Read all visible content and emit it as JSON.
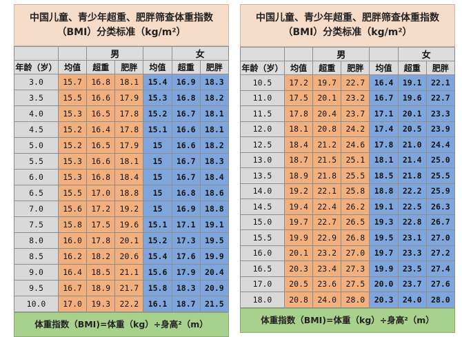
{
  "left": {
    "title_line1": "中国儿童、青少年超重、肥胖筛查体重指数",
    "title_line2": "（BMI）分类标准（kg/m²）",
    "group_boy": "男",
    "group_girl": "女",
    "col_headers": [
      "年龄（岁）",
      "均值",
      "超重",
      "肥胖",
      "均值",
      "超重",
      "肥胖"
    ],
    "rows": [
      [
        "3.0",
        "15.7",
        "16.8",
        "18.1",
        "15.4",
        "16.9",
        "18.3"
      ],
      [
        "3.5",
        "15.5",
        "16.6",
        "17.9",
        "15.3",
        "16.8",
        "18.2"
      ],
      [
        "4.0",
        "15.3",
        "16.5",
        "17.8",
        "15.2",
        "16.7",
        "18.1"
      ],
      [
        "4.5",
        "15.2",
        "16.4",
        "17.8",
        "15.1",
        "16.6",
        "18.1"
      ],
      [
        "5.0",
        "15.2",
        "16.5",
        "17.9",
        "15",
        "16.6",
        "18.2"
      ],
      [
        "5.5",
        "15.3",
        "16.6",
        "18.1",
        "15",
        "16.7",
        "18.3"
      ],
      [
        "6.0",
        "15.3",
        "16.8",
        "18.4",
        "15",
        "16.7",
        "18.4"
      ],
      [
        "6.5",
        "15.5",
        "17.0",
        "18.8",
        "15",
        "16.8",
        "18.6"
      ],
      [
        "7.0",
        "15.6",
        "17.2",
        "19.2",
        "15",
        "16.9",
        "18.8"
      ],
      [
        "7.5",
        "15.8",
        "17.5",
        "19.6",
        "15.1",
        "17.1",
        "19.1"
      ],
      [
        "8.0",
        "16.0",
        "17.8",
        "20.1",
        "15.2",
        "17.3",
        "19.5"
      ],
      [
        "8.5",
        "16.2",
        "18.2",
        "20.6",
        "15.4",
        "17.6",
        "19.9"
      ],
      [
        "9.0",
        "16.4",
        "18.5",
        "21.1",
        "15.6",
        "17.9",
        "20.4"
      ],
      [
        "9.5",
        "16.7",
        "18.9",
        "21.7",
        "15.8",
        "18.3",
        "20.9"
      ],
      [
        "10.0",
        "17.0",
        "19.3",
        "22.2",
        "16.1",
        "18.7",
        "21.5"
      ]
    ],
    "footer": "体重指数（BMI)=体重（kg）÷身高²（m）"
  },
  "right": {
    "title_line1": "中国儿童、青少年超重、肥胖筛查体重指数",
    "title_line2": "（BMI）分类标准（kg/m²）",
    "group_boy": "男",
    "group_girl": "女",
    "col_headers": [
      "年龄（岁）",
      "均值",
      "超重",
      "肥胖",
      "均值",
      "超重",
      "肥胖"
    ],
    "rows": [
      [
        "10.5",
        "17.2",
        "19.7",
        "22.7",
        "16.4",
        "19.1",
        "22.1"
      ],
      [
        "11.0",
        "17.5",
        "20.1",
        "23.2",
        "16.7",
        "19.6",
        "22.7"
      ],
      [
        "11.5",
        "17.8",
        "20.4",
        "23.7",
        "17.1",
        "20.1",
        "23.3"
      ],
      [
        "12.0",
        "18.1",
        "20.8",
        "24.2",
        "17.4",
        "20.5",
        "23.9"
      ],
      [
        "12.5",
        "18.4",
        "21.2",
        "24.6",
        "17.8",
        "21.0",
        "24.4"
      ],
      [
        "13.0",
        "18.7",
        "21.5",
        "25.1",
        "18.1",
        "21.4",
        "25.0"
      ],
      [
        "13.5",
        "18.9",
        "21.8",
        "25.5",
        "18.5",
        "21.8",
        "25.5"
      ],
      [
        "14.0",
        "19.2",
        "22.1",
        "25.8",
        "18.8",
        "22.2",
        "25.9"
      ],
      [
        "14.5",
        "19.4",
        "22.4",
        "26.2",
        "19.1",
        "22.5",
        "26.3"
      ],
      [
        "15.0",
        "19.7",
        "22.7",
        "26.5",
        "19.3",
        "22.8",
        "26.7"
      ],
      [
        "15.5",
        "19.9",
        "22.9",
        "26.8",
        "19.5",
        "23.1",
        "27.0"
      ],
      [
        "16.0",
        "20.1",
        "23.2",
        "27.0",
        "19.7",
        "23.3",
        "27.2"
      ],
      [
        "16.5",
        "20.3",
        "23.4",
        "27.3",
        "19.9",
        "23.5",
        "27.4"
      ],
      [
        "17.0",
        "20.5",
        "23.6",
        "27.5",
        "20.0",
        "23.7",
        "27.6"
      ],
      [
        "18.0",
        "20.8",
        "24.0",
        "28.0",
        "20.3",
        "24.0",
        "28.0"
      ]
    ],
    "footer": "体重指数（BMI)=体重（kg）÷身高²（m）"
  },
  "colors": {
    "title_bg": "#f5dcc8",
    "boy_cells": "#f2b07e",
    "girl_cells": "#7fa6dc",
    "header_bg": "#dcdcdc",
    "footer_bg": "#a9d18e"
  }
}
